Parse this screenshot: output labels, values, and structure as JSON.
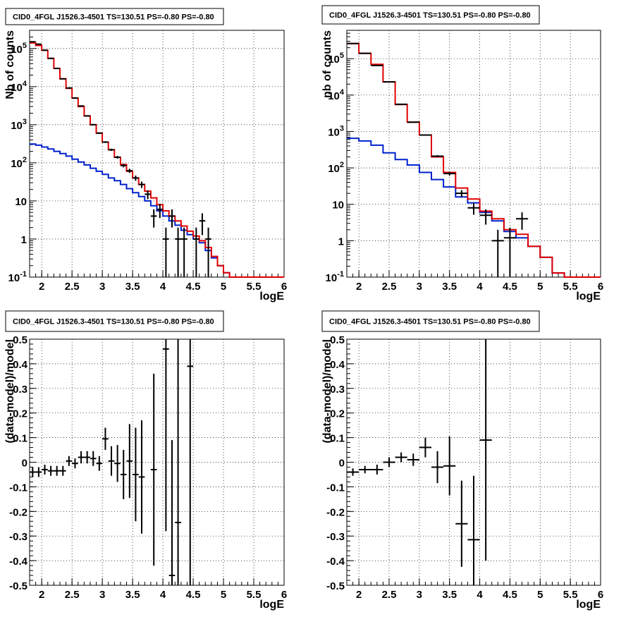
{
  "colors": {
    "model_total": "#e00000",
    "model_bkg": "#0022cc",
    "data": "#000000",
    "grid": "#000000"
  },
  "chart_data": [
    {
      "type": "line",
      "title": "CID0_4FGL J1526.3-4501 TS=130.51 PS=-0.80 PS=-0.80",
      "xlabel": "logE",
      "ylabel": "Nb of counts",
      "xlim": [
        1.8,
        6.0
      ],
      "ylim": [
        0.1,
        300000
      ],
      "log_y": true,
      "grid": true,
      "x_ticks": [
        "2",
        "2.5",
        "3",
        "3.5",
        "4",
        "4.5",
        "5",
        "5.5",
        "6"
      ],
      "y_ticks": [
        "10^-1",
        "1",
        "10",
        "10^2",
        "10^3",
        "10^4",
        "10^5"
      ],
      "bin_edges": [
        1.8,
        1.9,
        2.0,
        2.1,
        2.2,
        2.3,
        2.4,
        2.5,
        2.6,
        2.7,
        2.8,
        2.9,
        3.0,
        3.1,
        3.2,
        3.3,
        3.4,
        3.5,
        3.6,
        3.7,
        3.8,
        3.9,
        4.0,
        4.1,
        4.2,
        4.3,
        4.4,
        4.5,
        4.6,
        4.7,
        4.8,
        4.9,
        5.0,
        5.1,
        5.2,
        5.3,
        5.4,
        5.5,
        5.6,
        5.7,
        5.8,
        5.9,
        6.0
      ],
      "series": [
        {
          "values": [
            140000,
            120000,
            90000,
            55000,
            30000,
            16000,
            9000,
            5000,
            3000,
            1700,
            1000,
            600,
            350,
            220,
            140,
            90,
            60,
            40,
            27,
            18,
            12,
            8,
            5.5,
            4,
            3,
            2.2,
            1.6,
            1.2,
            0.9,
            0.6,
            0.35,
            0.2,
            0.13,
            0.1,
            0.1,
            0.1,
            0.1,
            0.1,
            0.1,
            0.1,
            0.1,
            0.1
          ]
        },
        {
          "values": [
            310,
            290,
            260,
            230,
            200,
            175,
            150,
            125,
            105,
            88,
            72,
            60,
            50,
            40,
            34,
            27,
            21,
            16.5,
            13,
            10,
            7.5,
            5.5,
            4,
            3,
            2.3,
            1.7,
            1.3,
            1,
            0.8,
            0.5,
            0.32,
            0.2,
            0.13,
            0.1,
            0.1,
            0.1,
            0.1,
            0.1,
            0.1,
            0.1,
            0.1,
            0.1
          ]
        }
      ],
      "data_points": [
        {
          "x": 1.85,
          "y": 150000
        },
        {
          "x": 1.95,
          "y": 130000
        },
        {
          "x": 2.05,
          "y": 90000
        },
        {
          "x": 2.15,
          "y": 55000
        },
        {
          "x": 2.25,
          "y": 30000
        },
        {
          "x": 2.35,
          "y": 16000
        },
        {
          "x": 2.45,
          "y": 9200
        },
        {
          "x": 2.55,
          "y": 5000
        },
        {
          "x": 2.65,
          "y": 3100
        },
        {
          "x": 2.75,
          "y": 1700
        },
        {
          "x": 2.85,
          "y": 1000
        },
        {
          "x": 2.95,
          "y": 600
        },
        {
          "x": 3.05,
          "y": 350
        },
        {
          "x": 3.15,
          "y": 220
        },
        {
          "x": 3.25,
          "y": 140
        },
        {
          "x": 3.35,
          "y": 85
        },
        {
          "x": 3.45,
          "y": 62
        },
        {
          "x": 3.55,
          "y": 40
        },
        {
          "x": 3.65,
          "y": 27
        },
        {
          "x": 3.75,
          "y": 15
        },
        {
          "x": 3.85,
          "y": 4
        },
        {
          "x": 3.95,
          "y": 6
        },
        {
          "x": 4.05,
          "y": 1
        },
        {
          "x": 4.15,
          "y": 4
        },
        {
          "x": 4.25,
          "y": 1
        },
        {
          "x": 4.35,
          "y": 1
        },
        {
          "x": 4.55,
          "y": 1
        },
        {
          "x": 4.65,
          "y": 3
        },
        {
          "x": 4.75,
          "y": 1
        }
      ]
    },
    {
      "type": "line",
      "title": "CID0_4FGL J1526.3-4501 TS=130.51 PS=-0.80 PS=-0.80",
      "xlabel": "logE",
      "ylabel": "nb of counts",
      "xlim": [
        1.8,
        6.0
      ],
      "ylim": [
        0.1,
        600000
      ],
      "log_y": true,
      "grid": true,
      "x_ticks": [
        "2",
        "2.5",
        "3",
        "3.5",
        "4",
        "4.5",
        "5",
        "5.5",
        "6"
      ],
      "y_ticks": [
        "10^-1",
        "1",
        "10",
        "10^2",
        "10^3",
        "10^4",
        "10^5"
      ],
      "bin_edges": [
        1.8,
        2.0,
        2.2,
        2.4,
        2.6,
        2.8,
        3.0,
        3.2,
        3.4,
        3.6,
        3.8,
        4.0,
        4.2,
        4.4,
        4.6,
        4.8,
        5.0,
        5.2,
        5.4,
        5.6,
        5.8,
        6.0
      ],
      "series": [
        {
          "values": [
            260000,
            140000,
            70000,
            23000,
            5500,
            1800,
            800,
            200,
            75,
            28,
            14,
            6.5,
            4,
            2,
            1.5,
            0.7,
            0.35,
            0.13,
            0.1,
            0.1,
            0.1
          ]
        },
        {
          "values": [
            650,
            550,
            420,
            260,
            170,
            120,
            75,
            48,
            30,
            16,
            11,
            6,
            3.5,
            1.8,
            1.2,
            0.7,
            0.35,
            0.13,
            0.1,
            0.1,
            0.1
          ]
        }
      ],
      "data_points": [
        {
          "x": 1.9,
          "y": 260000
        },
        {
          "x": 2.1,
          "y": 140000
        },
        {
          "x": 2.3,
          "y": 65000
        },
        {
          "x": 2.5,
          "y": 23000
        },
        {
          "x": 2.7,
          "y": 5600
        },
        {
          "x": 2.9,
          "y": 1800
        },
        {
          "x": 3.1,
          "y": 800
        },
        {
          "x": 3.3,
          "y": 210
        },
        {
          "x": 3.5,
          "y": 70
        },
        {
          "x": 3.7,
          "y": 20
        },
        {
          "x": 3.9,
          "y": 8
        },
        {
          "x": 4.1,
          "y": 5
        },
        {
          "x": 4.3,
          "y": 1
        },
        {
          "x": 4.5,
          "y": 1.2
        },
        {
          "x": 4.7,
          "y": 4
        }
      ]
    },
    {
      "type": "scatter",
      "title": "CID0_4FGL J1526.3-4501 TS=130.51 PS=-0.80 PS=-0.80",
      "xlabel": "logE",
      "ylabel": "(data-model)/model",
      "xlim": [
        1.8,
        6.0
      ],
      "ylim": [
        -0.5,
        0.5
      ],
      "grid": true,
      "x_ticks": [
        "2",
        "2.5",
        "3",
        "3.5",
        "4",
        "4.5",
        "5",
        "5.5",
        "6"
      ],
      "y_ticks": [
        "-0.5",
        "-0.4",
        "-0.3",
        "-0.2",
        "-0.1",
        "0",
        "0.1",
        "0.2",
        "0.3",
        "0.4",
        "0.5"
      ],
      "x_halfwidth": 0.05,
      "points": [
        {
          "x": 1.85,
          "y": -0.04,
          "err": 0.02
        },
        {
          "x": 1.95,
          "y": -0.04,
          "err": 0.02
        },
        {
          "x": 2.05,
          "y": -0.03,
          "err": 0.02
        },
        {
          "x": 2.15,
          "y": -0.035,
          "err": 0.02
        },
        {
          "x": 2.25,
          "y": -0.035,
          "err": 0.02
        },
        {
          "x": 2.35,
          "y": -0.035,
          "err": 0.02
        },
        {
          "x": 2.45,
          "y": 0.005,
          "err": 0.02
        },
        {
          "x": 2.55,
          "y": -0.005,
          "err": 0.02
        },
        {
          "x": 2.65,
          "y": 0.02,
          "err": 0.025
        },
        {
          "x": 2.75,
          "y": 0.02,
          "err": 0.025
        },
        {
          "x": 2.85,
          "y": 0.015,
          "err": 0.03
        },
        {
          "x": 2.95,
          "y": -0.005,
          "err": 0.03
        },
        {
          "x": 3.05,
          "y": 0.095,
          "err": 0.045
        },
        {
          "x": 3.15,
          "y": 0.005,
          "err": 0.06
        },
        {
          "x": 3.25,
          "y": -0.005,
          "err": 0.075
        },
        {
          "x": 3.35,
          "y": -0.05,
          "err": 0.1
        },
        {
          "x": 3.45,
          "y": 0.005,
          "err": 0.15
        },
        {
          "x": 3.55,
          "y": -0.05,
          "err": 0.19
        },
        {
          "x": 3.65,
          "y": -0.06,
          "err": 0.23
        },
        {
          "x": 3.85,
          "y": -0.03,
          "err": 0.39
        },
        {
          "x": 4.05,
          "y": 0.46,
          "err": 0.74
        },
        {
          "x": 4.15,
          "y": -0.46,
          "err": 0.55
        },
        {
          "x": 4.25,
          "y": -0.245,
          "err": 0.75
        },
        {
          "x": 4.45,
          "y": 0.39,
          "err": 0.95
        }
      ]
    },
    {
      "type": "scatter",
      "title": "CID0_4FGL J1526.3-4501 TS=130.51 PS=-0.80 PS=-0.80",
      "xlabel": "logE",
      "ylabel": "(data-model)/model",
      "xlim": [
        1.8,
        6.0
      ],
      "ylim": [
        -0.5,
        0.5
      ],
      "grid": true,
      "x_ticks": [
        "2",
        "2.5",
        "3",
        "3.5",
        "4",
        "4.5",
        "5",
        "5.5",
        "6"
      ],
      "y_ticks": [
        "-0.5",
        "-0.4",
        "-0.3",
        "-0.2",
        "-0.1",
        "0",
        "0.1",
        "0.2",
        "0.3",
        "0.4",
        "0.5"
      ],
      "x_halfwidth": 0.1,
      "points": [
        {
          "x": 1.9,
          "y": -0.04,
          "err": 0.015
        },
        {
          "x": 2.1,
          "y": -0.03,
          "err": 0.015
        },
        {
          "x": 2.3,
          "y": -0.03,
          "err": 0.02
        },
        {
          "x": 2.5,
          "y": 0.0,
          "err": 0.02
        },
        {
          "x": 2.7,
          "y": 0.02,
          "err": 0.02
        },
        {
          "x": 2.9,
          "y": 0.01,
          "err": 0.025
        },
        {
          "x": 3.1,
          "y": 0.06,
          "err": 0.04
        },
        {
          "x": 3.3,
          "y": -0.02,
          "err": 0.065
        },
        {
          "x": 3.5,
          "y": -0.015,
          "err": 0.12
        },
        {
          "x": 3.7,
          "y": -0.25,
          "err": 0.175
        },
        {
          "x": 3.9,
          "y": -0.315,
          "err": 0.26
        },
        {
          "x": 4.1,
          "y": 0.09,
          "err": 0.49
        }
      ]
    }
  ]
}
